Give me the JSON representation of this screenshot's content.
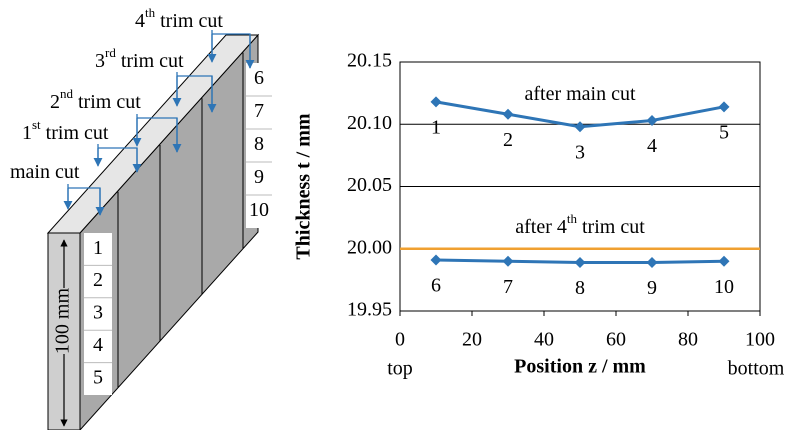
{
  "chart_data": {
    "type": "line",
    "y_label": "Thickness t / mm",
    "x_label": "Position z / mm",
    "x_end_labels": [
      "top",
      "bottom"
    ],
    "x": [
      10,
      30,
      50,
      70,
      90
    ],
    "series": [
      {
        "color": "#2e75b6",
        "values": [
          20.118,
          20.108,
          20.098,
          20.103,
          20.114
        ],
        "point_labels": [
          "1",
          "2",
          "3",
          "4",
          "5"
        ],
        "annotation": [
          "after main cut"
        ]
      },
      {
        "color": "#2e75b6",
        "values": [
          19.991,
          19.99,
          19.989,
          19.989,
          19.99
        ],
        "point_labels": [
          "6",
          "7",
          "8",
          "9",
          "10"
        ],
        "annotation": [
          "after 4",
          "th",
          " trim cut"
        ]
      }
    ],
    "reference_line": {
      "value": 20,
      "color": "#f0a030"
    },
    "xlim": [
      0,
      100
    ],
    "xticks": [
      0,
      20,
      40,
      60,
      80,
      100
    ],
    "ylim": [
      19.95,
      20.15
    ],
    "yticks": [
      19.95,
      {
        "value": 20,
        "label": "20.00"
      },
      20.05,
      {
        "value": 20.1,
        "label": "20.10"
      },
      20.15
    ],
    "grid": true
  },
  "diagram": {
    "cuts": [
      [
        "main cut"
      ],
      [
        "1",
        "st",
        " trim cut"
      ],
      [
        "2",
        "nd",
        " trim cut"
      ],
      [
        "3",
        "rd",
        " trim cut"
      ],
      [
        "4",
        "th",
        " trim cut"
      ]
    ],
    "segments": [
      "1",
      "2",
      "3",
      "4",
      "5",
      "6",
      "7",
      "8",
      "9",
      "10"
    ],
    "dimension": "100 mm"
  }
}
